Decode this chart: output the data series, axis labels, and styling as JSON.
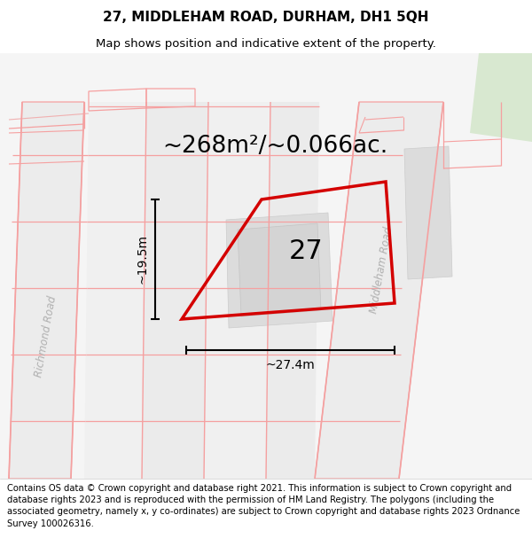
{
  "title": "27, MIDDLEHAM ROAD, DURHAM, DH1 5QH",
  "subtitle": "Map shows position and indicative extent of the property.",
  "area_text": "~268m²/~0.066ac.",
  "label_27": "27",
  "dim_height": "~19.5m",
  "dim_width": "~27.4m",
  "road_label_right": "Middleham Road",
  "road_label_left": "Richmond Road",
  "footer_text": "Contains OS data © Crown copyright and database right 2021. This information is subject to Crown copyright and database rights 2023 and is reproduced with the permission of HM Land Registry. The polygons (including the associated geometry, namely x, y co-ordinates) are subject to Crown copyright and database rights 2023 Ordnance Survey 100026316.",
  "map_bg": "#f7f7f7",
  "road_fill": "#e8e8e8",
  "block_fill": "#ebebeb",
  "block_fill2": "#e2e2e2",
  "parcel_red": "#d40000",
  "pink_line": "#f5a0a0",
  "pink_line2": "#f0b0b0",
  "gray_road_line": "#c8c8c8",
  "green_corner": "#d8e8d0",
  "title_fontsize": 11,
  "subtitle_fontsize": 9.5,
  "area_fontsize": 19,
  "label27_fontsize": 22,
  "footer_fontsize": 7.2,
  "dim_fontsize": 10
}
